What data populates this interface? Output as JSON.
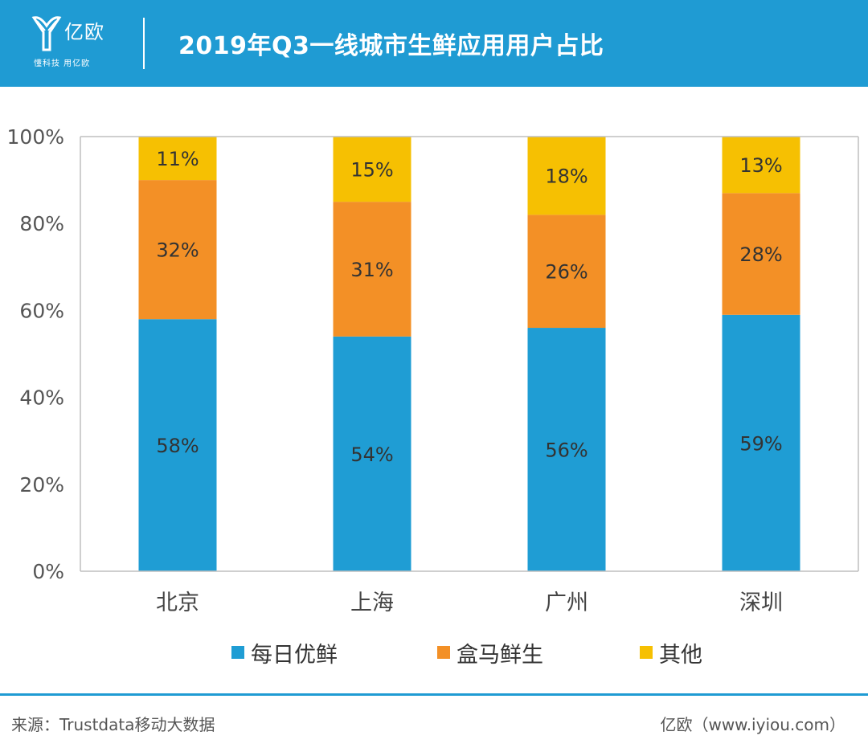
{
  "header": {
    "logo_name": "亿欧",
    "logo_slogan": "懂科技 用亿欧",
    "title": "2019年Q3一线城市生鲜应用用户占比",
    "brand_color": "#1f9bd3"
  },
  "chart_data": {
    "type": "bar",
    "stacked": true,
    "categories": [
      "北京",
      "上海",
      "广州",
      "深圳"
    ],
    "series": [
      {
        "name": "每日优鲜",
        "values": [
          58,
          54,
          56,
          59
        ],
        "labels": [
          "58%",
          "54%",
          "56%",
          "59%"
        ],
        "color": "#1f9dd4"
      },
      {
        "name": "盒马鲜生",
        "values": [
          32,
          31,
          26,
          28
        ],
        "labels": [
          "32%",
          "31%",
          "26%",
          "28%"
        ],
        "color": "#f39026"
      },
      {
        "name": "其他",
        "values": [
          11,
          15,
          18,
          13
        ],
        "labels": [
          "11%",
          "15%",
          "18%",
          "13%"
        ],
        "color": "#f6c002"
      }
    ],
    "yticks": [
      "0%",
      "20%",
      "40%",
      "60%",
      "80%",
      "100%"
    ],
    "ylim": [
      0,
      100
    ],
    "legend_position": "bottom",
    "grid": false
  },
  "footer": {
    "source": "来源：Trustdata移动大数据",
    "credit": "亿欧（www.iyiou.com）"
  }
}
